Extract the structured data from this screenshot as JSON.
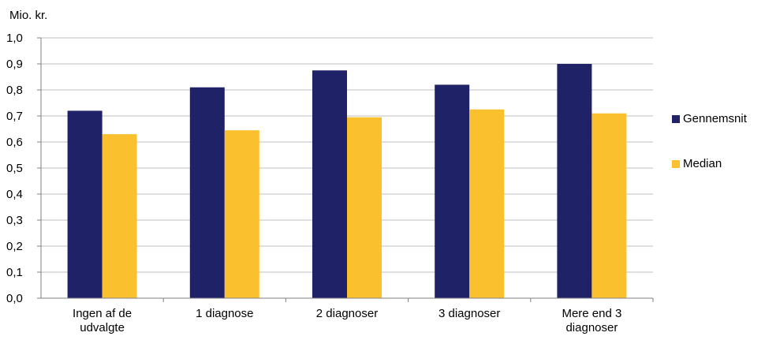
{
  "chart_data": {
    "type": "bar",
    "ylabel": "Mio. kr.",
    "ylim": [
      0,
      1.0
    ],
    "yticks": [
      "0,0",
      "0,1",
      "0,2",
      "0,3",
      "0,4",
      "0,5",
      "0,6",
      "0,7",
      "0,8",
      "0,9",
      "1,0"
    ],
    "categories": [
      [
        "Ingen af de",
        "udvalgte"
      ],
      [
        "1 diagnose"
      ],
      [
        "2 diagnoser"
      ],
      [
        "3 diagnoser"
      ],
      [
        "Mere end 3",
        "diagnoser"
      ]
    ],
    "series": [
      {
        "name": "Gennemsnit",
        "color": "#1f2266",
        "values": [
          0.72,
          0.81,
          0.875,
          0.82,
          0.9
        ]
      },
      {
        "name": "Median",
        "color": "#fbc02d",
        "values": [
          0.63,
          0.645,
          0.695,
          0.725,
          0.71
        ]
      }
    ],
    "grid": true,
    "legend": "right"
  }
}
